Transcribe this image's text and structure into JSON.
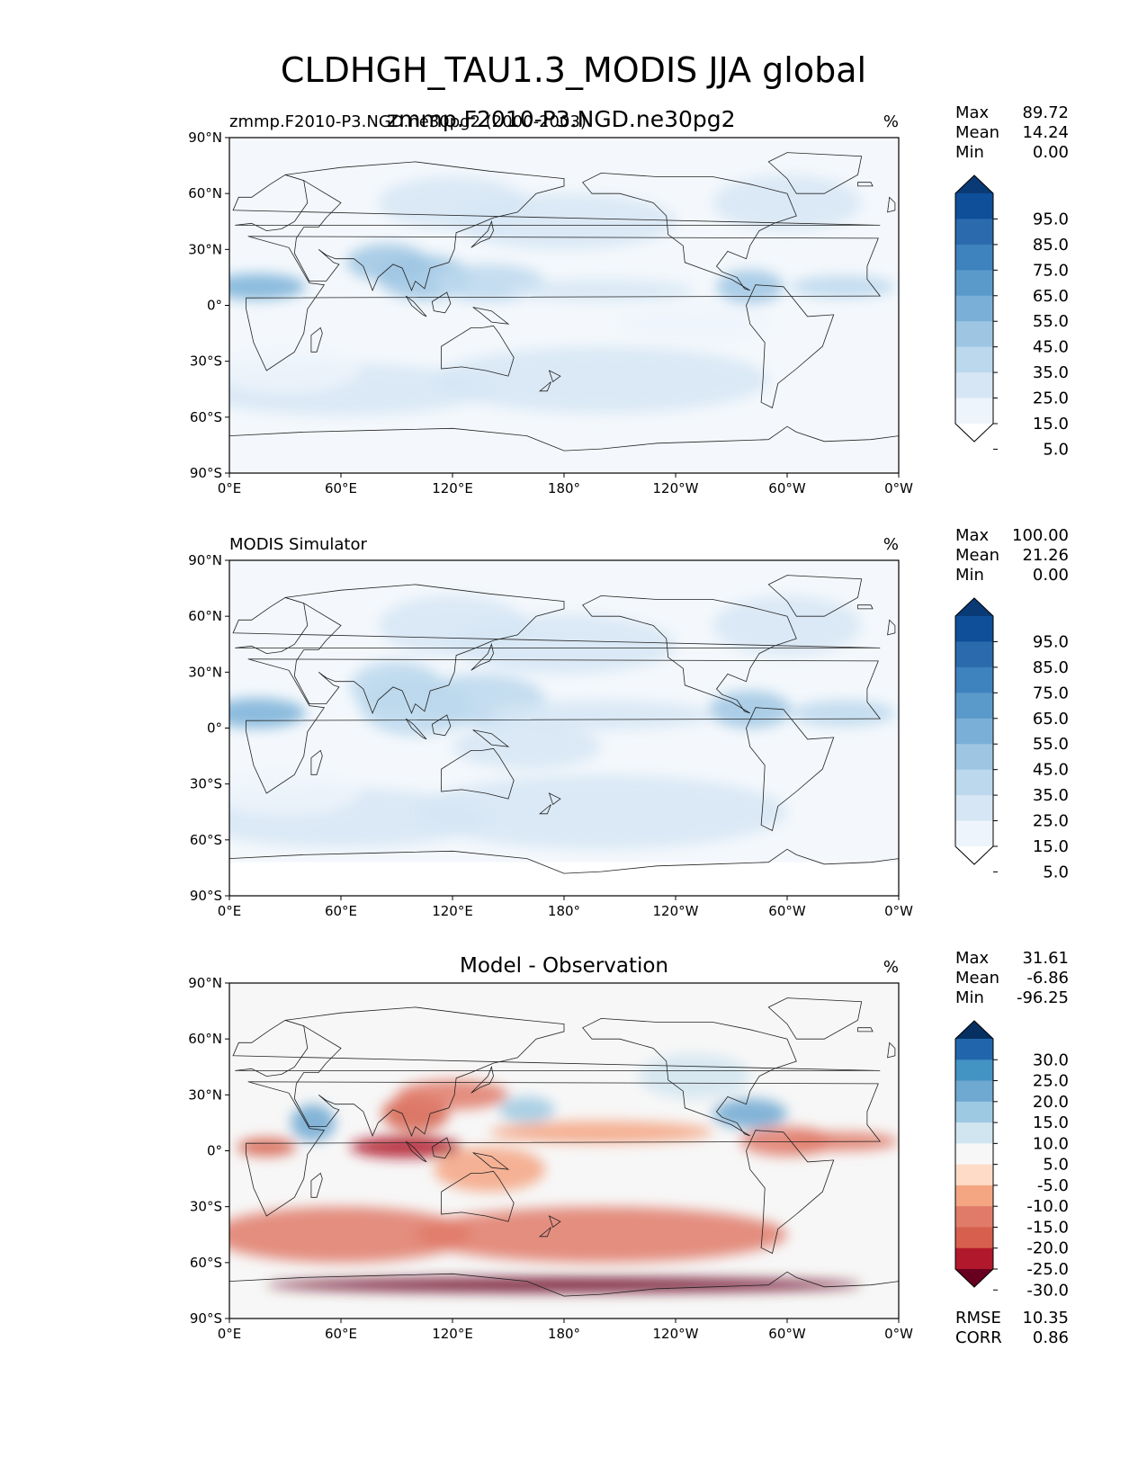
{
  "figure": {
    "title": "CLDHGH_TAU1.3_MODIS JJA global",
    "overlap_title": "zmmp.F2010-P3.NGD.ne30pg2"
  },
  "panels": [
    {
      "id": "test",
      "left_title": "zmmp.F2010-P3.NGD.ne30pg2 (2000-2003)",
      "center_title": "",
      "units": "%",
      "stats": {
        "max_label": "Max",
        "max": "89.72",
        "mean_label": "Mean",
        "mean": "14.24",
        "min_label": "Min",
        "min": "0.00"
      },
      "colorbar": {
        "labels": [
          "95.0",
          "85.0",
          "75.0",
          "65.0",
          "55.0",
          "45.0",
          "35.0",
          "25.0",
          "15.0",
          "5.0"
        ],
        "colors": [
          "#0a3a75",
          "#0f4f99",
          "#2a6aad",
          "#3e82be",
          "#5a9acb",
          "#7ab0d7",
          "#9ec6e3",
          "#bcd8ed",
          "#d6e6f4",
          "#edf4fb",
          "#ffffff"
        ]
      }
    },
    {
      "id": "ref",
      "left_title": "MODIS Simulator",
      "center_title": "",
      "units": "%",
      "stats": {
        "max_label": "Max",
        "max": "100.00",
        "mean_label": "Mean",
        "mean": "21.26",
        "min_label": "Min",
        "min": "0.00"
      },
      "colorbar": {
        "labels": [
          "95.0",
          "85.0",
          "75.0",
          "65.0",
          "55.0",
          "45.0",
          "35.0",
          "25.0",
          "15.0",
          "5.0"
        ],
        "colors": [
          "#0a3a75",
          "#0f4f99",
          "#2a6aad",
          "#3e82be",
          "#5a9acb",
          "#7ab0d7",
          "#9ec6e3",
          "#bcd8ed",
          "#d6e6f4",
          "#edf4fb",
          "#ffffff"
        ]
      }
    },
    {
      "id": "diff",
      "left_title": "",
      "center_title": "Model - Observation",
      "units": "%",
      "stats": {
        "max_label": "Max",
        "max": "31.61",
        "mean_label": "Mean",
        "mean": "-6.86",
        "min_label": "Min",
        "min": "-96.25"
      },
      "colorbar": {
        "labels": [
          "30.0",
          "25.0",
          "20.0",
          "15.0",
          "10.0",
          "5.0",
          "-5.0",
          "-10.0",
          "-15.0",
          "-20.0",
          "-25.0",
          "-30.0"
        ],
        "colors": [
          "#053061",
          "#2166ac",
          "#4393c3",
          "#6fa8d1",
          "#9ec9e2",
          "#d1e5f0",
          "#f7f7f7",
          "#fddbc7",
          "#f4a582",
          "#e07b6a",
          "#d6604d",
          "#b2182b",
          "#67001f"
        ]
      },
      "extra_stats": {
        "rmse_label": "RMSE",
        "rmse": "10.35",
        "corr_label": "CORR",
        "corr": "0.86"
      }
    }
  ],
  "chart_data": [
    {
      "type": "heatmap",
      "title": "zmmp.F2010-P3.NGD.ne30pg2 (2000-2003)",
      "variable": "CLDHGH_TAU1.3_MODIS",
      "season": "JJA",
      "units": "%",
      "x_ticks": [
        "0°E",
        "60°E",
        "120°E",
        "180°",
        "120°W",
        "60°W",
        "0°W"
      ],
      "y_ticks": [
        "90°N",
        "60°N",
        "30°N",
        "0°",
        "30°S",
        "60°S",
        "90°S"
      ],
      "xlim": [
        0,
        360
      ],
      "ylim": [
        -90,
        90
      ],
      "levels": [
        5,
        15,
        25,
        35,
        45,
        55,
        65,
        75,
        85,
        95
      ],
      "max": 89.72,
      "mean": 14.24,
      "min": 0.0,
      "colormap": "Blues"
    },
    {
      "type": "heatmap",
      "title": "MODIS Simulator",
      "units": "%",
      "x_ticks": [
        "0°E",
        "60°E",
        "120°E",
        "180°",
        "120°W",
        "60°W",
        "0°W"
      ],
      "y_ticks": [
        "90°N",
        "60°N",
        "30°N",
        "0°",
        "30°S",
        "60°S",
        "90°S"
      ],
      "xlim": [
        0,
        360
      ],
      "ylim": [
        -90,
        90
      ],
      "levels": [
        5,
        15,
        25,
        35,
        45,
        55,
        65,
        75,
        85,
        95
      ],
      "max": 100.0,
      "mean": 21.26,
      "min": 0.0,
      "colormap": "Blues"
    },
    {
      "type": "heatmap",
      "title": "Model - Observation",
      "units": "%",
      "x_ticks": [
        "0°E",
        "60°E",
        "120°E",
        "180°",
        "120°W",
        "60°W",
        "0°W"
      ],
      "y_ticks": [
        "90°N",
        "60°N",
        "30°N",
        "0°",
        "30°S",
        "60°S",
        "90°S"
      ],
      "xlim": [
        0,
        360
      ],
      "ylim": [
        -90,
        90
      ],
      "levels": [
        -30,
        -25,
        -20,
        -15,
        -10,
        -5,
        5,
        10,
        15,
        20,
        25,
        30
      ],
      "max": 31.61,
      "mean": -6.86,
      "min": -96.25,
      "rmse": 10.35,
      "corr": 0.86,
      "colormap": "RdBu"
    }
  ]
}
